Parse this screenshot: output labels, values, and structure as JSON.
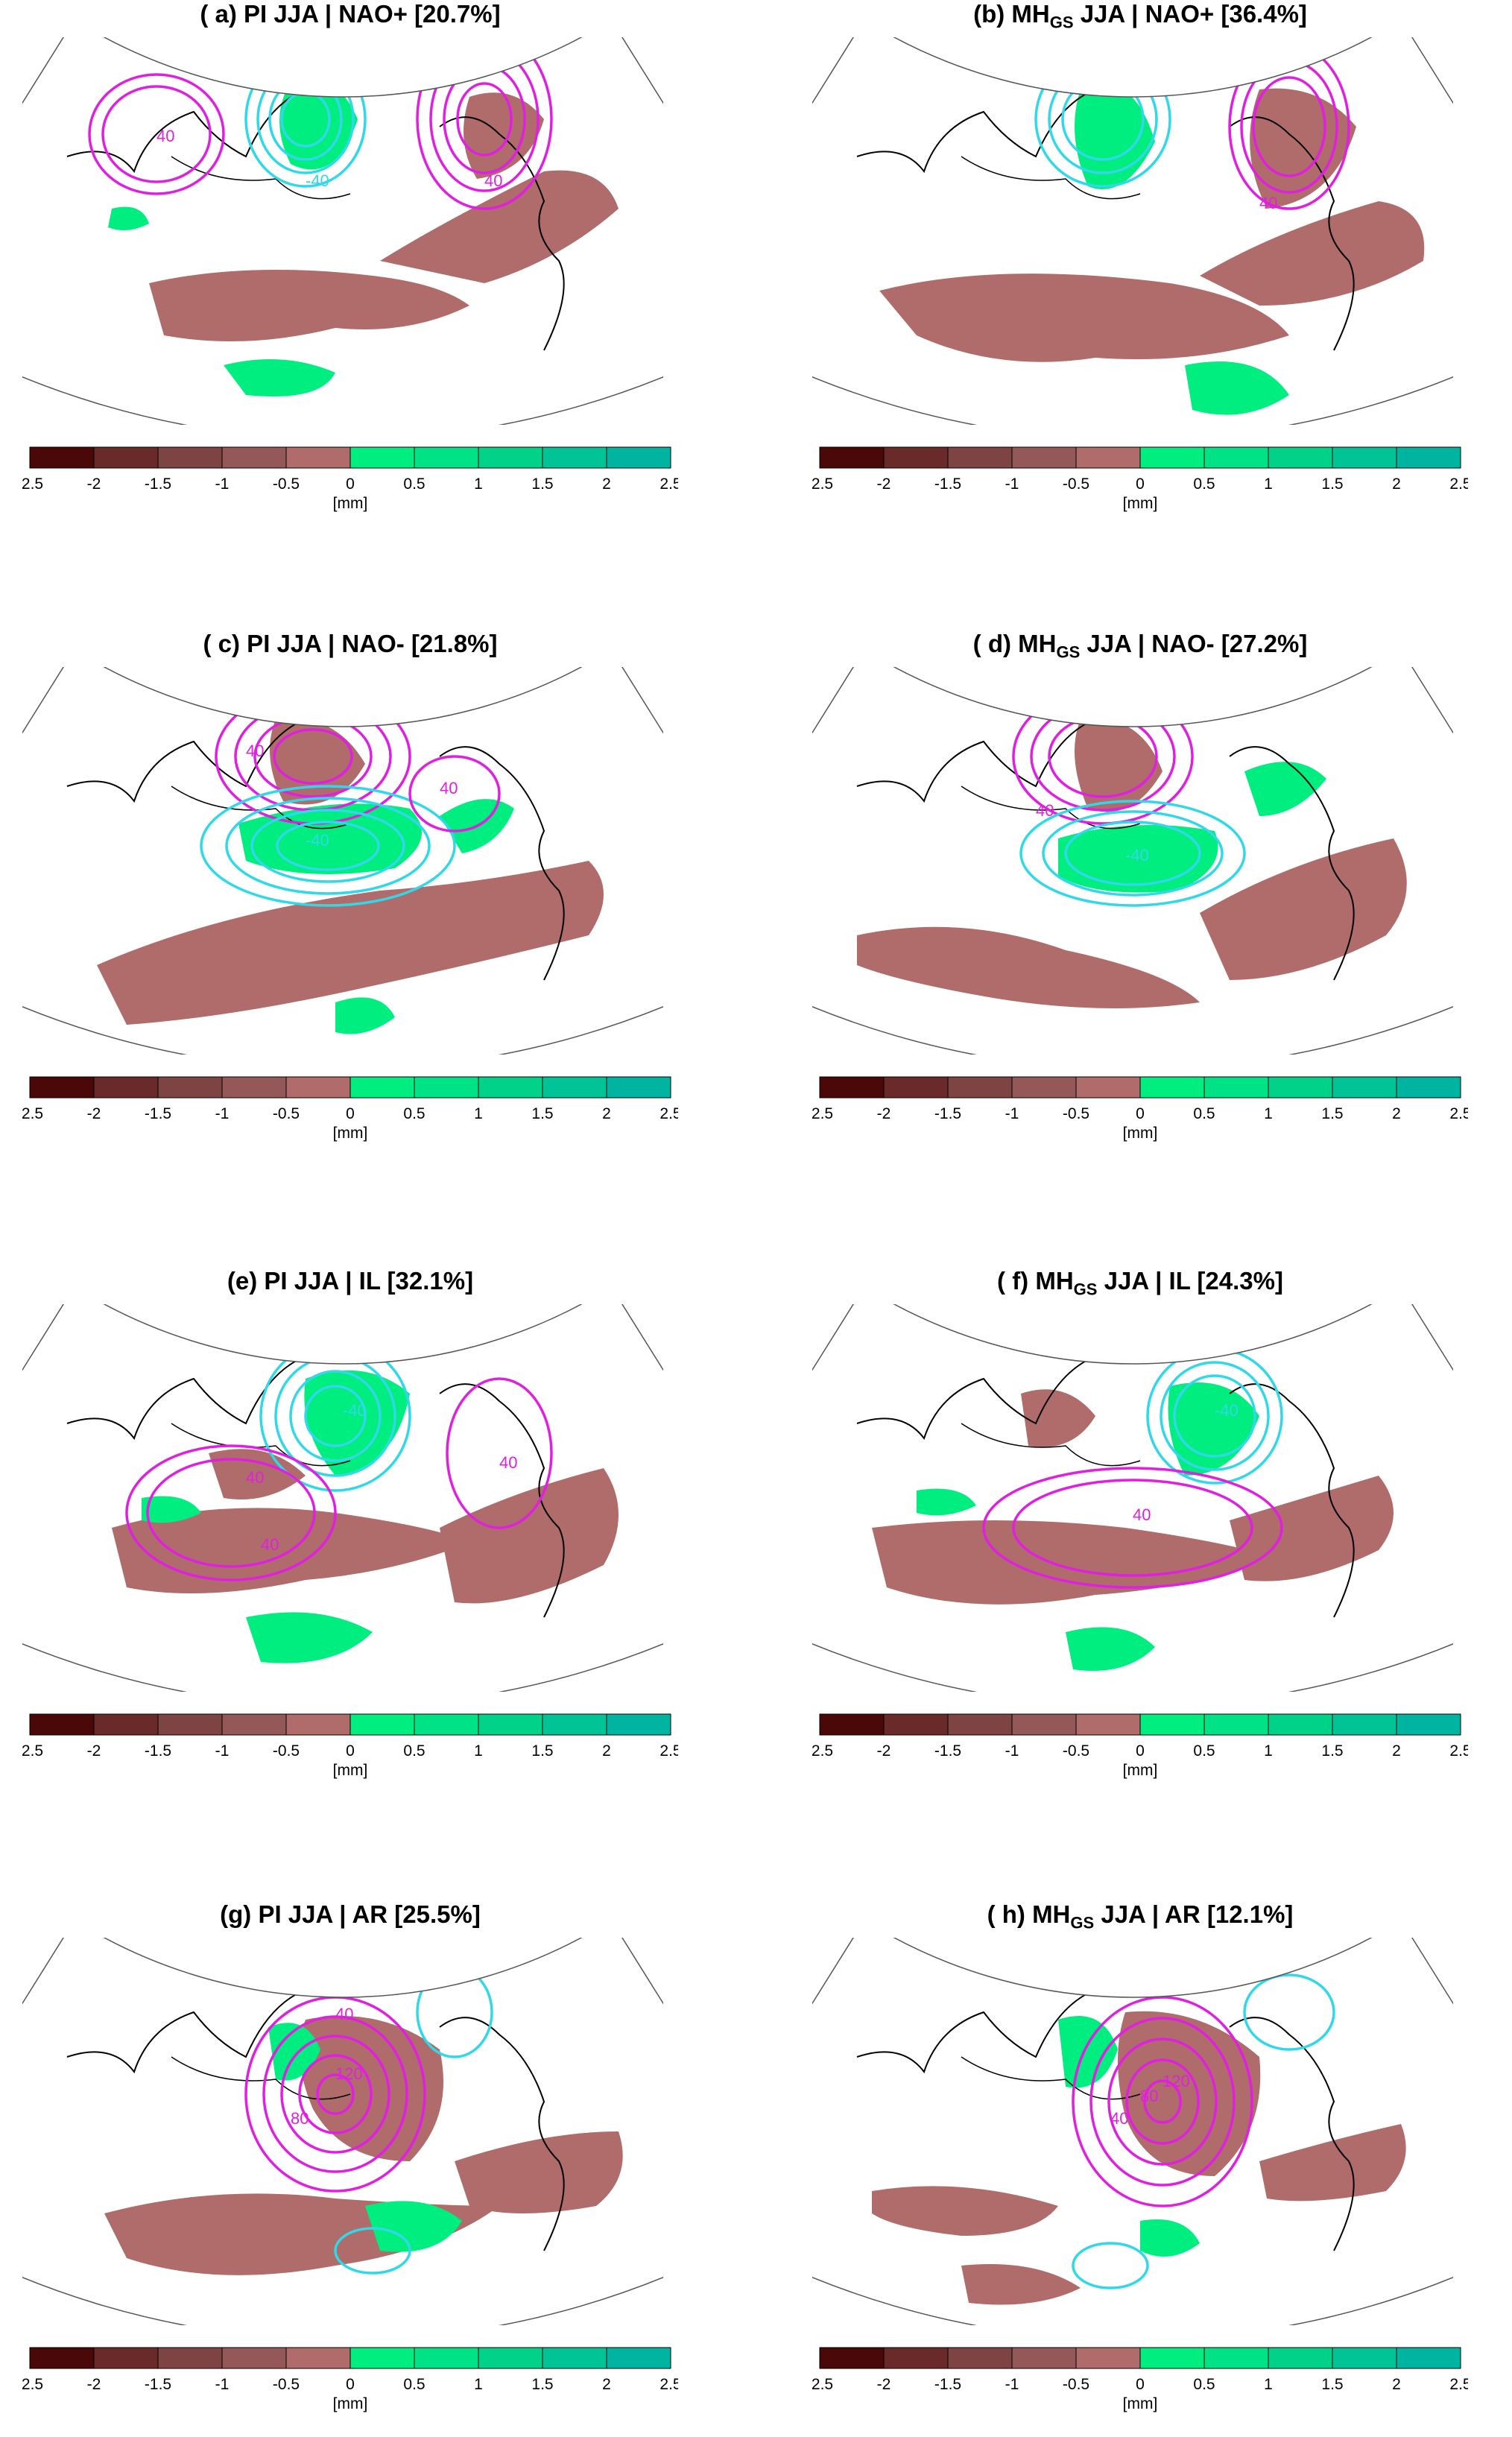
{
  "panels": [
    {
      "id": "a",
      "prefix": "( a) PI",
      "sub": "",
      "rest": " JJA | NAO+ [20.7%]"
    },
    {
      "id": "b",
      "prefix": "(b) MH",
      "sub": "GS",
      "rest": " JJA | NAO+ [36.4%]"
    },
    {
      "id": "c",
      "prefix": "( c) PI",
      "sub": "",
      "rest": " JJA | NAO- [21.8%]"
    },
    {
      "id": "d",
      "prefix": "( d) MH",
      "sub": "GS",
      "rest": " JJA | NAO- [27.2%]"
    },
    {
      "id": "e",
      "prefix": "(e) PI",
      "sub": "",
      "rest": " JJA | IL [32.1%]"
    },
    {
      "id": "f",
      "prefix": "( f) MH",
      "sub": "GS",
      "rest": " JJA | IL [24.3%]"
    },
    {
      "id": "g",
      "prefix": "(g) PI",
      "sub": "",
      "rest": " JJA | AR [25.5%]"
    },
    {
      "id": "h",
      "prefix": "( h) MH",
      "sub": "GS",
      "rest": " JJA | AR [12.1%]"
    }
  ],
  "colorbar": {
    "ticks": [
      "-2.5",
      "-2",
      "-1.5",
      "-1",
      "-0.5",
      "0",
      "0.5",
      "1",
      "1.5",
      "2",
      "2.5"
    ],
    "colors": [
      "#4a0808",
      "#6b2a2a",
      "#7e4444",
      "#955858",
      "#b06b6b",
      "#00ee80",
      "#00e286",
      "#00d28a",
      "#00c496",
      "#00b4a2"
    ],
    "unit": "[mm]"
  },
  "contour_labels": {
    "a": [
      "40",
      "-40",
      "40"
    ],
    "b": [
      "40"
    ],
    "c": [
      "40",
      "-40",
      "40"
    ],
    "d": [
      "-40",
      "40"
    ],
    "e": [
      "40",
      "40",
      "-40",
      "40"
    ],
    "f": [
      "40",
      "-40"
    ],
    "g": [
      "80",
      "120",
      "40"
    ],
    "h": [
      "40",
      "80",
      "120"
    ]
  },
  "colors": {
    "positive_contour": "#e020e0",
    "negative_contour": "#30d8e8",
    "dry": "#b06b6b",
    "wet": "#00ee80"
  }
}
